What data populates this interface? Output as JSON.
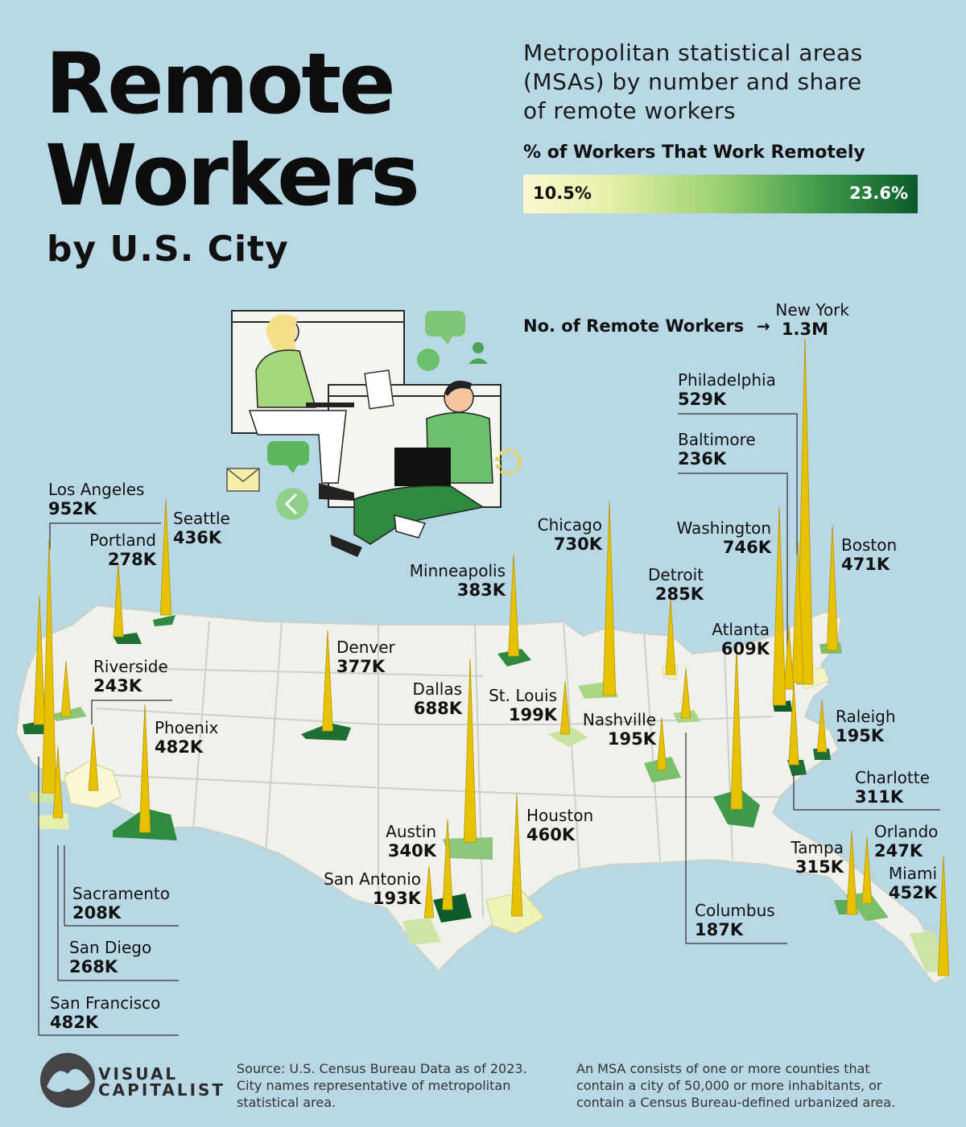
{
  "title": {
    "line1": "Remote",
    "line2": "Workers",
    "line3": "by U.S. City"
  },
  "subtitle": {
    "l1": "Metropolitan statistical areas",
    "l2": "(MSAs) by number and share",
    "l3": "of remote workers"
  },
  "legend": {
    "title": "% of Workers That Work Remotely",
    "min": "10.5%",
    "max": "23.6%"
  },
  "size_key": {
    "label": "No. of Remote Workers",
    "arrow": "→"
  },
  "chart_data": {
    "type": "map",
    "title": "Remote Workers by U.S. City",
    "subtitle": "Metropolitan statistical areas (MSAs) by number and share of remote workers",
    "color_scale": {
      "label": "% of Workers That Work Remotely",
      "min": 10.5,
      "max": 23.6,
      "unit": "%"
    },
    "size_label": "No. of Remote Workers",
    "points": [
      {
        "city": "New York",
        "label": "1.3M",
        "value": 1300000
      },
      {
        "city": "Los Angeles",
        "label": "952K",
        "value": 952000
      },
      {
        "city": "Washington",
        "label": "746K",
        "value": 746000
      },
      {
        "city": "Chicago",
        "label": "730K",
        "value": 730000
      },
      {
        "city": "Dallas",
        "label": "688K",
        "value": 688000
      },
      {
        "city": "Atlanta",
        "label": "609K",
        "value": 609000
      },
      {
        "city": "Philadelphia",
        "label": "529K",
        "value": 529000
      },
      {
        "city": "Phoenix",
        "label": "482K",
        "value": 482000
      },
      {
        "city": "San Francisco",
        "label": "482K",
        "value": 482000
      },
      {
        "city": "Boston",
        "label": "471K",
        "value": 471000
      },
      {
        "city": "Houston",
        "label": "460K",
        "value": 460000
      },
      {
        "city": "Miami",
        "label": "452K",
        "value": 452000
      },
      {
        "city": "Seattle",
        "label": "436K",
        "value": 436000
      },
      {
        "city": "Minneapolis",
        "label": "383K",
        "value": 383000
      },
      {
        "city": "Denver",
        "label": "377K",
        "value": 377000
      },
      {
        "city": "Austin",
        "label": "340K",
        "value": 340000
      },
      {
        "city": "Tampa",
        "label": "315K",
        "value": 315000
      },
      {
        "city": "Charlotte",
        "label": "311K",
        "value": 311000
      },
      {
        "city": "Detroit",
        "label": "285K",
        "value": 285000
      },
      {
        "city": "Portland",
        "label": "278K",
        "value": 278000
      },
      {
        "city": "San Diego",
        "label": "268K",
        "value": 268000
      },
      {
        "city": "Orlando",
        "label": "247K",
        "value": 247000
      },
      {
        "city": "Riverside",
        "label": "243K",
        "value": 243000
      },
      {
        "city": "Baltimore",
        "label": "236K",
        "value": 236000
      },
      {
        "city": "Sacramento",
        "label": "208K",
        "value": 208000
      },
      {
        "city": "St. Louis",
        "label": "199K",
        "value": 199000
      },
      {
        "city": "Nashville",
        "label": "195K",
        "value": 195000
      },
      {
        "city": "Raleigh",
        "label": "195K",
        "value": 195000
      },
      {
        "city": "San Antonio",
        "label": "193K",
        "value": 193000
      },
      {
        "city": "Columbus",
        "label": "187K",
        "value": 187000
      }
    ]
  },
  "colors": {
    "background": "#b9d8e6",
    "land": "#eff1ea",
    "spike": "#e6c200",
    "scale_low": "#fbf8d0",
    "scale_high": "#0d5a2a"
  },
  "footer": {
    "brand1": "VISUAL",
    "brand2": "CAPITALIST",
    "source1": "Source: U.S. Census Bureau Data as of 2023.",
    "source2": "City names representative of metropolitan",
    "source3": "statistical area.",
    "note1": "An MSA consists of one or more counties that",
    "note2": "contain a city of 50,000 or more inhabitants, or",
    "note3": "contain a Census Bureau-defined urbanized area."
  }
}
